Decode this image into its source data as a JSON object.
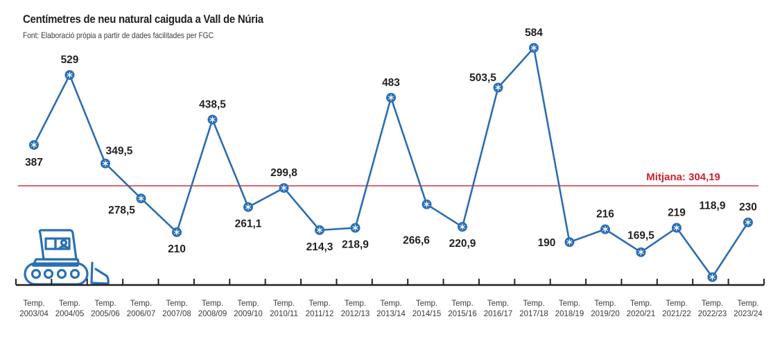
{
  "header": {
    "title": "Centímetres de neu natural caiguda a Vall de Núria",
    "subtitle": "Font: Elaboració pròpia a partir de dades facilitades per FGC"
  },
  "colors": {
    "line": "#2b6cb0",
    "marker": "#2a6fb5",
    "average": "#d0202e",
    "axis": "#231f20",
    "icon": "#2a6fb5"
  },
  "icons": {
    "marker": "snowflake-icon",
    "decoration": "snow-groomer-icon"
  },
  "chart_data": {
    "type": "line",
    "title": "Centímetres de neu natural caiguda a Vall de Núria",
    "subtitle": "Font: Elaboració pròpia a partir de dades facilitades per FGC",
    "xlabel": "",
    "ylabel": "",
    "categories": [
      [
        "Temp.",
        "2003/04"
      ],
      [
        "Temp.",
        "2004/05"
      ],
      [
        "Temp.",
        "2005/06"
      ],
      [
        "Temp.",
        "2006/07"
      ],
      [
        "Temp.",
        "2007/08"
      ],
      [
        "Temp.",
        "2008/09"
      ],
      [
        "Temp.",
        "2009/10"
      ],
      [
        "Temp.",
        "2010/11"
      ],
      [
        "Temp.",
        "2011/12"
      ],
      [
        "Temp.",
        "2012/13"
      ],
      [
        "Temp.",
        "2013/14"
      ],
      [
        "Temp.",
        "2014/15"
      ],
      [
        "Temp.",
        "2015/16"
      ],
      [
        "Temp.",
        "2016/17"
      ],
      [
        "Temp.",
        "2017/18"
      ],
      [
        "Temp.",
        "2018/19"
      ],
      [
        "Temp.",
        "2019/20"
      ],
      [
        "Temp.",
        "2020/21"
      ],
      [
        "Temp.",
        "2021/22"
      ],
      [
        "Temp.",
        "2022/23"
      ],
      [
        "Temp.",
        "2023/24"
      ]
    ],
    "values": [
      387,
      529,
      349.5,
      278.5,
      210,
      438.5,
      261.1,
      299.8,
      214.3,
      218.9,
      483,
      266.6,
      220.9,
      503.5,
      584,
      190,
      216,
      169.5,
      219,
      118.9,
      230
    ],
    "value_labels": [
      "387",
      "529",
      "349,5",
      "278,5",
      "210",
      "438,5",
      "261,1",
      "299,8",
      "214,3",
      "218,9",
      "483",
      "266,6",
      "220,9",
      "503,5",
      "584",
      "190",
      "216",
      "169,5",
      "219",
      "118,9",
      "230"
    ],
    "label_position": [
      "below",
      "above",
      "above-right",
      "below-left",
      "below",
      "above",
      "below",
      "above",
      "below",
      "below",
      "above",
      "above-left",
      "below",
      "above-left",
      "above",
      "left",
      "above",
      "above",
      "above",
      "above",
      "above"
    ],
    "average": {
      "value": 304.19,
      "label": "Mitjana: 304,19"
    },
    "ylim": [
      103,
      600
    ],
    "grid": false,
    "legend": "none"
  }
}
